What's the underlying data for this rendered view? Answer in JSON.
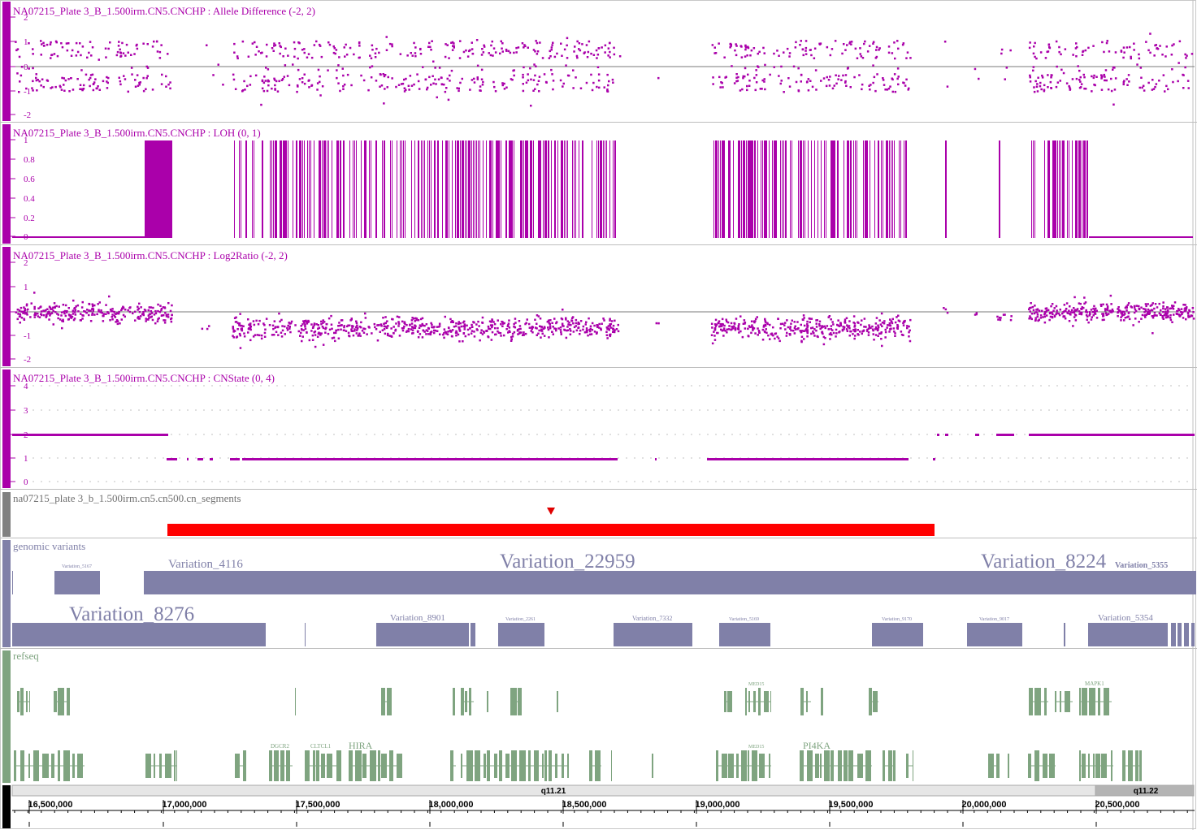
{
  "colors": {
    "magenta": "#aa00aa",
    "segment_red": "#ff0000",
    "variant_purple": "#8080a8",
    "refseq_green": "#7fa480",
    "track_gray": "#808080"
  },
  "tracks": {
    "allele_difference": {
      "title": "NA07215_Plate 3_B_1.500irm.CN5.CNCHP : Allele Difference (-2, 2)",
      "ticks": [
        "2",
        "1",
        "0",
        "-1",
        "-2"
      ]
    },
    "loh": {
      "title": "NA07215_Plate 3_B_1.500irm.CN5.CNCHP : LOH (0, 1)",
      "ticks": [
        "1",
        "0.8",
        "0.6",
        "0.4",
        "0.2",
        "0"
      ]
    },
    "log2ratio": {
      "title": "NA07215_Plate 3_B_1.500irm.CN5.CNCHP : Log2Ratio (-2, 2)",
      "ticks": [
        "2",
        "1",
        "0",
        "-1",
        "-2"
      ]
    },
    "cnstate": {
      "title": "NA07215_Plate 3_B_1.500irm.CN5.CNCHP : CNState (0, 4)",
      "ticks": [
        "4",
        "3",
        "2",
        "1",
        "0"
      ]
    },
    "cn_segments": {
      "title": "na07215_plate 3_b_1.500irm.cn5.cn500.cn_segments"
    },
    "genomic_variants": {
      "title": "genomic variants",
      "labels": [
        {
          "text": "Variation_5167"
        },
        {
          "text": "Variation_4116"
        },
        {
          "text": "Variation_22959"
        },
        {
          "text": "Variation_8224"
        },
        {
          "text": "Variation_5355"
        },
        {
          "text": "Variation_8276"
        },
        {
          "text": "Variation_8901"
        },
        {
          "text": "Variation_2261"
        },
        {
          "text": "Variation_7332"
        },
        {
          "text": "Variation_5169"
        },
        {
          "text": "Variation_9170"
        },
        {
          "text": "Variation_9017"
        },
        {
          "text": "Variation_5354"
        }
      ]
    },
    "refseq": {
      "title": "refseq",
      "labels": [
        {
          "text": "DGCR2"
        },
        {
          "text": "CLTCL1"
        },
        {
          "text": "HIRA"
        },
        {
          "text": "MED15"
        },
        {
          "text": "PI4KA"
        },
        {
          "text": "MAPK1"
        }
      ]
    }
  },
  "ruler": {
    "band_left": "q11.21",
    "band_right": "q11.22",
    "positions": [
      "16,500,000",
      "17,000,000",
      "17,500,000",
      "18,000,000",
      "18,500,000",
      "19,000,000",
      "19,500,000",
      "20,000,000",
      "20,500,000"
    ]
  }
}
